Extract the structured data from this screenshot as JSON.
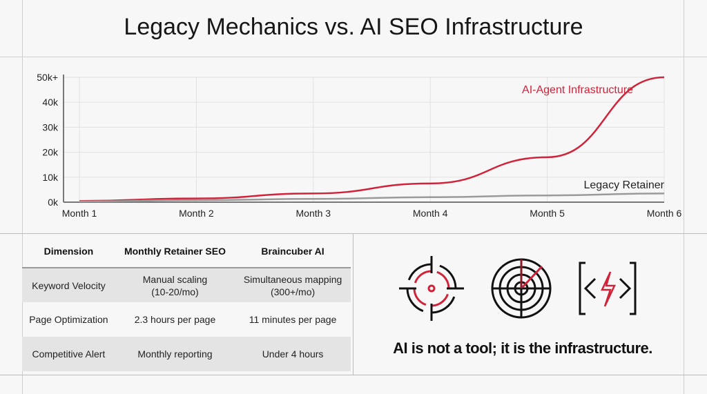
{
  "title": "Legacy Mechanics vs. AI SEO Infrastructure",
  "chart_data": {
    "type": "line",
    "title": "Legacy Mechanics vs. AI SEO Infrastructure",
    "categories": [
      "Month 1",
      "Month 2",
      "Month 3",
      "Month 4",
      "Month 5",
      "Month 6"
    ],
    "y_ticks": [
      "0k",
      "10k",
      "20k",
      "30k",
      "40k",
      "50k+"
    ],
    "ylim": [
      0,
      50000
    ],
    "grid": true,
    "series": [
      {
        "name": "AI-Agent Infrastructure",
        "color": "#d0233a",
        "values": [
          500,
          1500,
          3500,
          7500,
          18000,
          50000
        ]
      },
      {
        "name": "Legacy Retainer",
        "color": "#9a9a9a",
        "values": [
          300,
          800,
          1300,
          2000,
          2700,
          3500
        ]
      }
    ]
  },
  "table": {
    "headers": [
      "Dimension",
      "Monthly Retainer SEO",
      "Braincuber AI"
    ],
    "rows": [
      [
        "Keyword Velocity",
        "Manual scaling\n(10-20/mo)",
        "Simultaneous mapping\n(300+/mo)"
      ],
      [
        "Page Optimization",
        "2.3 hours per page",
        "11 minutes per page"
      ],
      [
        "Competitive Alert",
        "Monthly reporting",
        "Under 4 hours"
      ]
    ]
  },
  "icons": [
    "crosshair-target-icon",
    "radar-icon",
    "code-lightning-icon"
  ],
  "tagline": "AI is not a tool; it is the infrastructure.",
  "accent": "#d0233a"
}
